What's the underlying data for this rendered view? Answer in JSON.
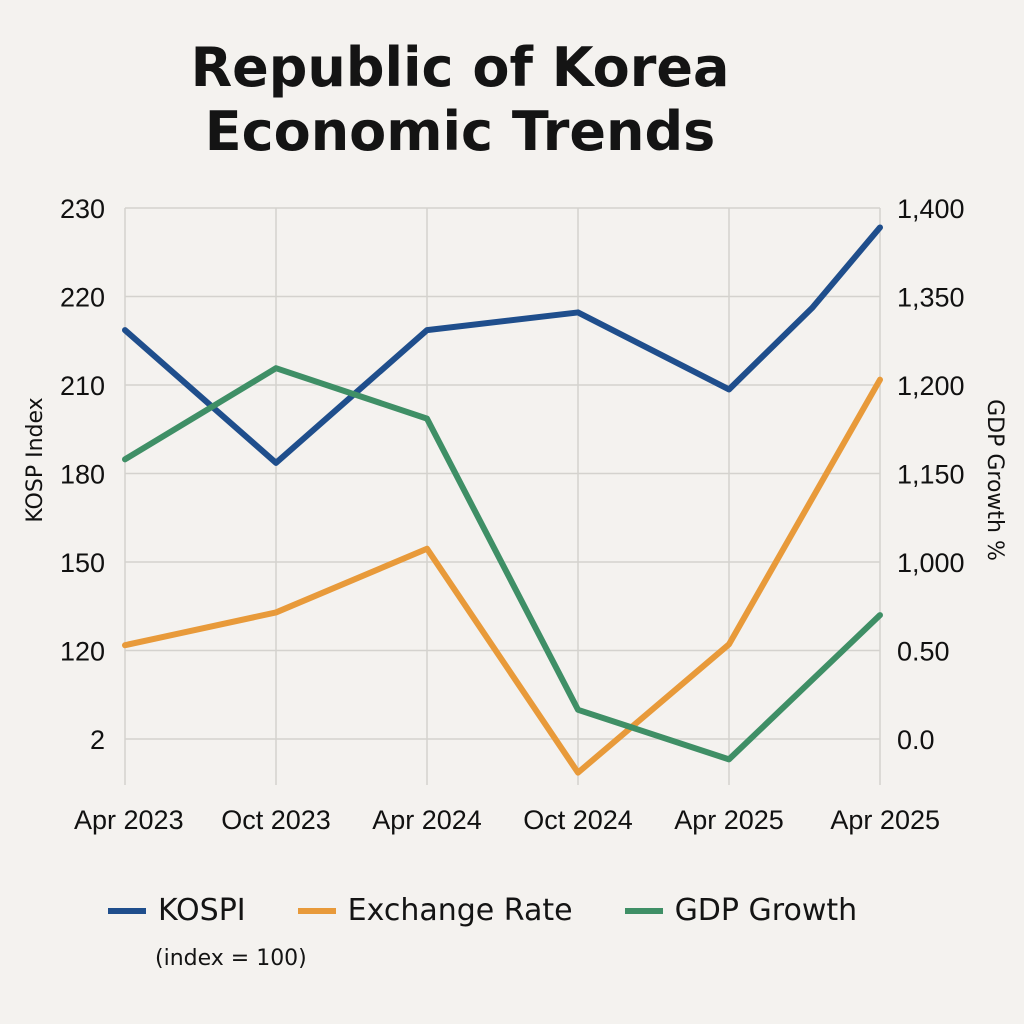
{
  "title_lines": [
    "Republic of Korea",
    "Economic Trends"
  ],
  "chart_data": {
    "type": "line",
    "title": "Republic of Korea Economic Trends",
    "categories": [
      "Apr 2023",
      "Oct 2023",
      "Apr 2024",
      "Oct 2024",
      "Apr 2025",
      "Apr 2025"
    ],
    "x_positions": [
      0,
      1,
      2,
      3,
      4,
      5
    ],
    "left_axis": {
      "label": "KOSP Index",
      "ticks": [
        "230",
        "220",
        "210",
        "180",
        "150",
        "120",
        "2"
      ]
    },
    "right_axis": {
      "label": "GDP Growth %",
      "ticks": [
        "1,400",
        "1,350",
        "1,200",
        "1,150",
        "1,000",
        "0.50",
        "0.0"
      ]
    },
    "tick_scale": {
      "min_level": 0,
      "max_level": 6
    },
    "series": [
      {
        "name": "KOSPI",
        "color": "#1f4e8c",
        "x": [
          0,
          1,
          2,
          3,
          4,
          4.55,
          5
        ],
        "values": [
          4.62,
          3.12,
          4.62,
          4.82,
          3.95,
          4.87,
          5.78
        ]
      },
      {
        "name": "Exchange Rate",
        "color": "#e89a3a",
        "x": [
          0,
          1,
          2,
          3,
          4,
          5
        ],
        "values": [
          1.06,
          1.43,
          2.15,
          -0.38,
          1.07,
          4.06
        ]
      },
      {
        "name": "GDP Growth",
        "color": "#3f8f66",
        "x": [
          0,
          1,
          2,
          3,
          4,
          5
        ],
        "values": [
          3.16,
          4.19,
          3.62,
          0.33,
          -0.23,
          1.4
        ]
      }
    ],
    "legend_note": "(index = 100)",
    "grid": true,
    "legend_position": "bottom"
  }
}
